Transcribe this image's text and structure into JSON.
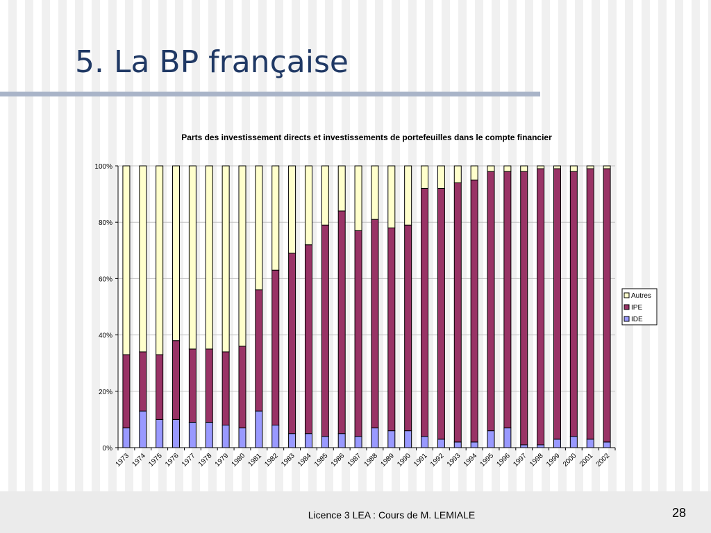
{
  "slide": {
    "title": "5. La BP française",
    "footer": "Licence 3 LEA : Cours de M. LEMIALE",
    "page_number": "28"
  },
  "colors": {
    "title": "#1f3864",
    "underline": "#a9b4c8",
    "ide": "#9999ff",
    "ipe": "#993366",
    "autres": "#ffffcc",
    "outline": "#000000",
    "grid": "#c0c0c0"
  },
  "chart_data": {
    "type": "bar",
    "stacked": true,
    "percent": true,
    "title": "Parts des investissement directs et investissements de portefeuilles dans le compte financier",
    "xlabel": "",
    "ylabel": "",
    "ylim": [
      0,
      100
    ],
    "yticks": [
      "0%",
      "20%",
      "40%",
      "60%",
      "80%",
      "100%"
    ],
    "grid": true,
    "legend_position": "right",
    "legend": [
      "Autres",
      "IPE",
      "IDE"
    ],
    "categories": [
      "1973",
      "1974",
      "1975",
      "1976",
      "1977",
      "1978",
      "1979",
      "1980",
      "1981",
      "1982",
      "1983",
      "1984",
      "1985",
      "1986",
      "1987",
      "1988",
      "1989",
      "1990",
      "1991",
      "1992",
      "1993",
      "1994",
      "1995",
      "1996",
      "1997",
      "1998",
      "1999",
      "2000",
      "2001",
      "2002"
    ],
    "series": [
      {
        "name": "IDE",
        "color": "#9999ff",
        "values": [
          7,
          13,
          10,
          10,
          9,
          9,
          8,
          7,
          13,
          8,
          5,
          5,
          4,
          5,
          4,
          7,
          6,
          6,
          4,
          3,
          2,
          2,
          6,
          7,
          1,
          1,
          3,
          4,
          3,
          2
        ]
      },
      {
        "name": "IPE",
        "color": "#993366",
        "values": [
          26,
          21,
          23,
          28,
          26,
          26,
          26,
          29,
          43,
          55,
          64,
          67,
          75,
          79,
          73,
          74,
          72,
          73,
          88,
          89,
          92,
          93,
          92,
          91,
          97,
          98,
          96,
          94,
          96,
          97
        ]
      },
      {
        "name": "Autres",
        "color": "#ffffcc",
        "values": [
          67,
          66,
          67,
          62,
          65,
          65,
          66,
          64,
          44,
          37,
          31,
          28,
          21,
          16,
          23,
          19,
          22,
          21,
          8,
          8,
          6,
          5,
          2,
          2,
          2,
          1,
          1,
          2,
          1,
          1
        ]
      }
    ]
  }
}
